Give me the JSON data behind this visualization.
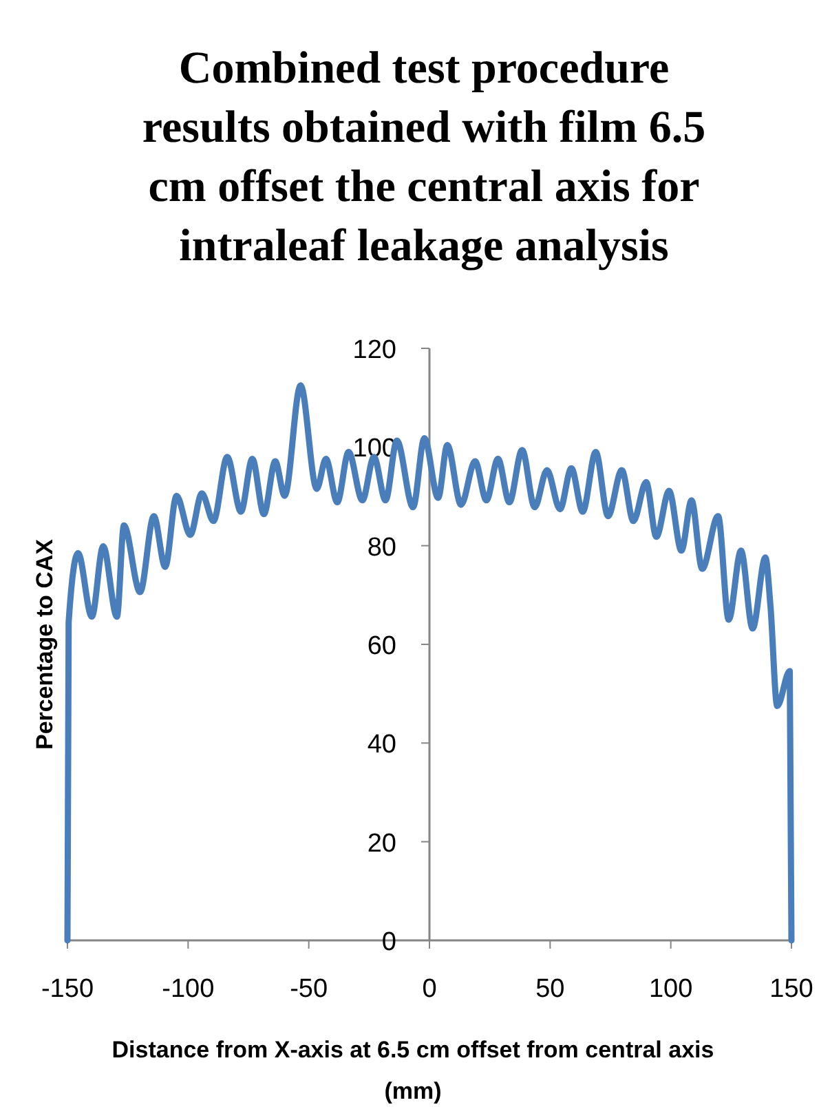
{
  "chart_data": {
    "type": "line",
    "title": "Combined test procedure results obtained with film 6.5 cm offset the central axis for intraleaf leakage analysis",
    "xlabel": "Distance from X-axis at 6.5 cm offset from central axis (mm)",
    "ylabel": "Percentage to CAX",
    "xlim": [
      -150,
      150
    ],
    "xticks": [
      -150,
      -100,
      -50,
      0,
      50,
      100,
      150
    ],
    "ylim": [
      0,
      120
    ],
    "yticks": [
      0,
      20,
      40,
      60,
      80,
      100,
      120
    ],
    "grid": false,
    "marker": "none",
    "line_style": "solid",
    "series": [
      {
        "color": "#4a7ebb",
        "x": [
          -150,
          -149.5,
          -145.6,
          -139.9,
          -135.2,
          -129.5,
          -126.6,
          -119.9,
          -114.2,
          -109.5,
          -104.8,
          -99.1,
          -94.3,
          -89.5,
          -83.8,
          -78.1,
          -73.4,
          -68.6,
          -63.9,
          -60,
          -53.4,
          -46.7,
          -42.9,
          -38.2,
          -33.5,
          -27.8,
          -23,
          -18.2,
          -13.5,
          -6.8,
          -2.1,
          3.6,
          7.4,
          13.1,
          18.9,
          23.6,
          28.4,
          33.1,
          38.4,
          43.6,
          48.7,
          54.1,
          58.8,
          63.5,
          68.9,
          74,
          79.7,
          84.5,
          89.8,
          94,
          99.3,
          104.4,
          108.6,
          113,
          119.6,
          124,
          129.1,
          133.9,
          139.2,
          141.3,
          144.1,
          149.3,
          150
        ],
        "values": [
          0,
          64.5,
          78.5,
          65.6,
          79.9,
          65.6,
          84.1,
          70.6,
          86,
          75.7,
          90.1,
          82.2,
          90.6,
          85,
          98,
          86.9,
          97.6,
          86.4,
          97.1,
          90.1,
          112.5,
          91.5,
          97.6,
          88.8,
          99,
          89.2,
          98,
          89.2,
          101.3,
          87.8,
          101.8,
          89.7,
          100.4,
          88.3,
          97.1,
          89.2,
          97.6,
          88.8,
          99.4,
          87.8,
          95.3,
          87.4,
          95.7,
          86.9,
          99,
          86,
          95.3,
          85,
          92.9,
          81.8,
          91.1,
          79,
          89.2,
          75.3,
          86,
          65,
          79,
          63.2,
          77.6,
          67.8,
          47.5,
          54.6,
          0
        ]
      }
    ]
  }
}
